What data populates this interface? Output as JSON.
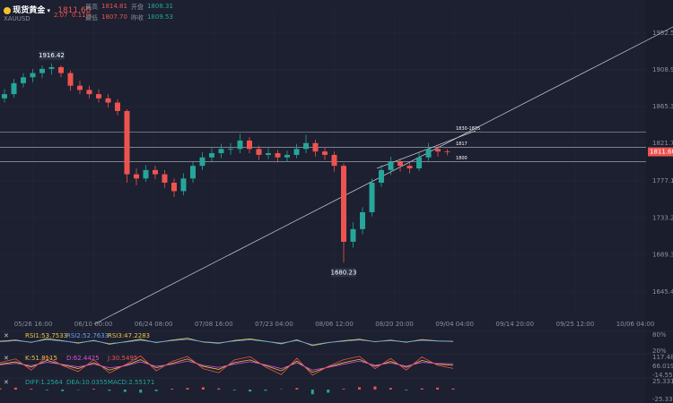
{
  "header": {
    "name": "现货黄金",
    "price": "1811.60",
    "symbol": "XAUUSD",
    "change": "2.07",
    "change_pct": "0.11%",
    "stats": [
      {
        "label": "最高",
        "value": "1814.81"
      },
      {
        "label": "开盘",
        "value": "1808.31"
      },
      {
        "label": "最低",
        "value": "1807.70"
      },
      {
        "label": "昨收",
        "value": "1809.53"
      }
    ]
  },
  "chart_data": {
    "type": "candlestick",
    "up_color": "#26a69a",
    "down_color": "#ef5350",
    "ylim": [
      1620,
      1981
    ],
    "yticks": [
      1952.56,
      1908.94,
      1865.32,
      1821.7,
      1777.18,
      1733.25,
      1689.34,
      1645.42
    ],
    "xtick_labels": [
      "05/26 16:00",
      "06/10 00:00",
      "06/24 08:00",
      "07/08 16:00",
      "07/23 04:00",
      "08/06 12:00",
      "08/20 20:00",
      "09/04 04:00",
      "09/14 20:00",
      "09/25 12:00",
      "10/06 04:00"
    ],
    "candles": [
      {
        "open": 1875,
        "high": 1886,
        "low": 1870,
        "close": 1880
      },
      {
        "open": 1880,
        "high": 1898,
        "low": 1876,
        "close": 1893
      },
      {
        "open": 1893,
        "high": 1905,
        "low": 1888,
        "close": 1900
      },
      {
        "open": 1900,
        "high": 1910,
        "low": 1894,
        "close": 1905
      },
      {
        "open": 1905,
        "high": 1914,
        "low": 1899,
        "close": 1910
      },
      {
        "open": 1910,
        "high": 1916.42,
        "low": 1903,
        "close": 1912
      },
      {
        "open": 1912,
        "high": 1914,
        "low": 1900,
        "close": 1905
      },
      {
        "open": 1905,
        "high": 1908,
        "low": 1884,
        "close": 1890
      },
      {
        "open": 1890,
        "high": 1896,
        "low": 1880,
        "close": 1885
      },
      {
        "open": 1885,
        "high": 1890,
        "low": 1875,
        "close": 1880
      },
      {
        "open": 1880,
        "high": 1886,
        "low": 1870,
        "close": 1875
      },
      {
        "open": 1875,
        "high": 1880,
        "low": 1864,
        "close": 1870
      },
      {
        "open": 1870,
        "high": 1874,
        "low": 1855,
        "close": 1860
      },
      {
        "open": 1860,
        "high": 1862,
        "low": 1775,
        "close": 1785
      },
      {
        "open": 1785,
        "high": 1792,
        "low": 1772,
        "close": 1780
      },
      {
        "open": 1780,
        "high": 1796,
        "low": 1776,
        "close": 1790
      },
      {
        "open": 1790,
        "high": 1795,
        "low": 1779,
        "close": 1785
      },
      {
        "open": 1785,
        "high": 1790,
        "low": 1769,
        "close": 1775
      },
      {
        "open": 1775,
        "high": 1780,
        "low": 1758,
        "close": 1765
      },
      {
        "open": 1765,
        "high": 1786,
        "low": 1760,
        "close": 1780
      },
      {
        "open": 1780,
        "high": 1800,
        "low": 1775,
        "close": 1795
      },
      {
        "open": 1795,
        "high": 1811,
        "low": 1790,
        "close": 1805
      },
      {
        "open": 1805,
        "high": 1816,
        "low": 1799,
        "close": 1810
      },
      {
        "open": 1810,
        "high": 1821,
        "low": 1804,
        "close": 1815
      },
      {
        "open": 1815,
        "high": 1822,
        "low": 1808,
        "close": 1815
      },
      {
        "open": 1815,
        "high": 1833,
        "low": 1810,
        "close": 1825
      },
      {
        "open": 1825,
        "high": 1829,
        "low": 1810,
        "close": 1815
      },
      {
        "open": 1815,
        "high": 1819,
        "low": 1802,
        "close": 1808
      },
      {
        "open": 1808,
        "high": 1816,
        "low": 1803,
        "close": 1810
      },
      {
        "open": 1810,
        "high": 1814,
        "low": 1799,
        "close": 1805
      },
      {
        "open": 1805,
        "high": 1813,
        "low": 1800,
        "close": 1808
      },
      {
        "open": 1808,
        "high": 1821,
        "low": 1804,
        "close": 1815
      },
      {
        "open": 1815,
        "high": 1832,
        "low": 1810,
        "close": 1822
      },
      {
        "open": 1822,
        "high": 1826,
        "low": 1806,
        "close": 1812
      },
      {
        "open": 1812,
        "high": 1816,
        "low": 1802,
        "close": 1808
      },
      {
        "open": 1808,
        "high": 1812,
        "low": 1788,
        "close": 1795
      },
      {
        "open": 1795,
        "high": 1798,
        "low": 1680.23,
        "close": 1705
      },
      {
        "open": 1705,
        "high": 1728,
        "low": 1698,
        "close": 1720
      },
      {
        "open": 1720,
        "high": 1746,
        "low": 1714,
        "close": 1740
      },
      {
        "open": 1740,
        "high": 1780,
        "low": 1735,
        "close": 1775
      },
      {
        "open": 1775,
        "high": 1796,
        "low": 1770,
        "close": 1790
      },
      {
        "open": 1790,
        "high": 1806,
        "low": 1784,
        "close": 1800
      },
      {
        "open": 1800,
        "high": 1804,
        "low": 1788,
        "close": 1795
      },
      {
        "open": 1795,
        "high": 1800,
        "low": 1786,
        "close": 1792
      },
      {
        "open": 1792,
        "high": 1811,
        "low": 1789,
        "close": 1805
      },
      {
        "open": 1805,
        "high": 1822,
        "low": 1801,
        "close": 1815
      },
      {
        "open": 1815,
        "high": 1820,
        "low": 1806,
        "close": 1812
      },
      {
        "open": 1812,
        "high": 1814.81,
        "low": 1807.7,
        "close": 1811.6
      }
    ],
    "levels": [
      {
        "value": 1835,
        "label": "1830-1835"
      },
      1817,
      1800
    ],
    "indicators": [
      {
        "name": "RSI",
        "labels": [
          "RSI1:53.7533",
          "RSI2:52.7633",
          "RSI3:47.2283"
        ],
        "axis_labels": [
          "80%",
          "20%"
        ],
        "lim": [
          0,
          100
        ],
        "kind": "line",
        "series": [
          {
            "color": "#e8c547",
            "values": [
              55,
              62,
              48,
              70,
              58,
              44,
              60,
              38,
              52,
              66,
              47,
              61,
              72,
              50,
              43,
              59,
              68,
              55,
              40,
              63,
              30,
              47,
              58,
              66,
              52,
              61,
              49,
              64,
              57,
              54
            ]
          },
          {
            "color": "#6aa3e8",
            "values": [
              52,
              58,
              50,
              64,
              56,
              47,
              57,
              42,
              50,
              61,
              49,
              58,
              66,
              52,
              46,
              56,
              63,
              54,
              44,
              59,
              35,
              48,
              55,
              62,
              53,
              58,
              51,
              60,
              56,
              53
            ]
          }
        ]
      },
      {
        "name": "KDJ",
        "labels": [
          "K:51.8115",
          "D:62.4425",
          "J:30.5495"
        ],
        "axis_labels": [
          "117.484",
          "66.0199",
          "-14.5561"
        ],
        "lim": [
          -14.5561,
          117.484
        ],
        "kind": "line",
        "series": [
          {
            "color": "#e8c547",
            "values": [
              60,
              75,
              40,
              85,
              55,
              30,
              70,
              20,
              50,
              90,
              35,
              65,
              95,
              45,
              25,
              70,
              88,
              50,
              15,
              80,
              5,
              40,
              70,
              92,
              45,
              78,
              38,
              85,
              60,
              52
            ]
          },
          {
            "color": "#d94fd9",
            "values": [
              55,
              65,
              50,
              72,
              58,
              42,
              60,
              35,
              48,
              75,
              45,
              58,
              80,
              52,
              38,
              60,
              76,
              55,
              30,
              68,
              20,
              38,
              60,
              80,
              52,
              68,
              46,
              72,
              64,
              62
            ]
          },
          {
            "color": "#ef5350",
            "values": [
              70,
              95,
              20,
              110,
              50,
              10,
              90,
              0,
              55,
              115,
              15,
              78,
              112,
              30,
              2,
              88,
              110,
              40,
              -10,
              100,
              -14,
              45,
              90,
              112,
              30,
              98,
              20,
              108,
              52,
              31
            ]
          }
        ]
      },
      {
        "name": "MACD",
        "labels": [
          "DIFF:1.2564",
          "DEA:10.0355",
          "MACD:2.55171"
        ],
        "axis_labels": [
          "25.33115",
          "-25.33115"
        ],
        "lim": [
          -25.33115,
          25.33115
        ],
        "kind": "bar",
        "series": [
          {
            "color": "#26a69a",
            "values": [
              3,
              5,
              2,
              -2,
              -4,
              -1,
              2,
              -3,
              -6,
              -8,
              -4,
              2,
              4,
              6,
              3,
              -2,
              -5,
              -3,
              1,
              4,
              -12,
              -8,
              2,
              6,
              8,
              4,
              -2,
              3,
              5,
              2.55171
            ]
          }
        ]
      }
    ]
  }
}
